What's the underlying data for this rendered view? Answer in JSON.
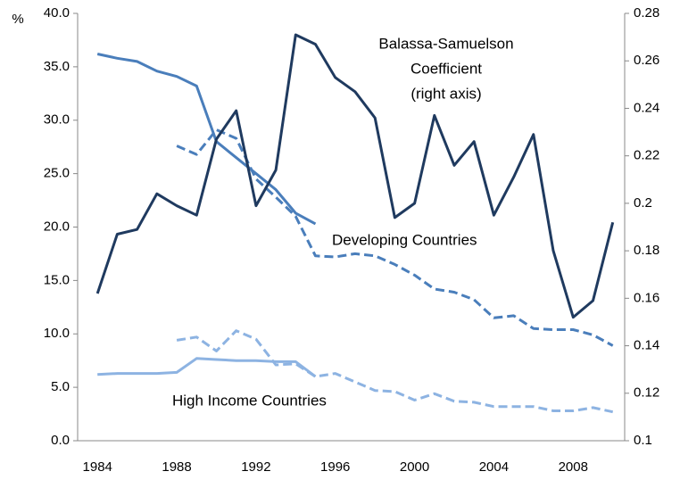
{
  "chart_data": {
    "type": "line",
    "y_unit_label": "%",
    "annotations": [
      [
        "Balassa-Samuelson",
        "Coefficient",
        "(right axis)"
      ],
      [
        "Developing Countries"
      ],
      [
        "High Income Countries"
      ]
    ],
    "xlim": [
      1983,
      2010.6
    ],
    "xticks": [
      1984,
      1988,
      1992,
      1996,
      2000,
      2004,
      2008
    ],
    "ylim": [
      0,
      40
    ],
    "yticks": [
      {
        "value": 0,
        "label": "0.0"
      },
      {
        "value": 5,
        "label": "5.0"
      },
      {
        "value": 10,
        "label": "10.0"
      },
      {
        "value": 15,
        "label": "15.0"
      },
      {
        "value": 20,
        "label": "20.0"
      },
      {
        "value": 25,
        "label": "25.0"
      },
      {
        "value": 30,
        "label": "30.0"
      },
      {
        "value": 35,
        "label": "35.0"
      },
      {
        "value": 40,
        "label": "40.0"
      }
    ],
    "y2lim": [
      0.1,
      0.28
    ],
    "y2ticks": [
      0.1,
      0.12,
      0.14,
      0.16,
      0.18,
      0.2,
      0.22,
      0.24,
      0.26,
      0.28
    ],
    "grid": false,
    "series": [
      {
        "color": "#4a7ebb",
        "style": "solid",
        "x": [
          1984,
          1985,
          1986,
          1987,
          1988,
          1989,
          1990,
          1991,
          1992,
          1993,
          1994,
          1995
        ],
        "values": [
          36.2,
          35.8,
          35.5,
          34.6,
          34.1,
          33.2,
          28.0,
          26.5,
          25.0,
          23.5,
          21.3,
          20.3
        ]
      },
      {
        "color": "#4a7ebb",
        "style": "dashed",
        "x": [
          1988,
          1989,
          1990,
          1991,
          1992,
          1993,
          1994,
          1995,
          1996,
          1997,
          1998,
          1999,
          2000,
          2001,
          2002,
          2003,
          2004,
          2005,
          2006,
          2007,
          2008,
          2009,
          2010
        ],
        "values": [
          27.6,
          26.8,
          29.1,
          28.3,
          24.5,
          22.8,
          21.0,
          17.3,
          17.2,
          17.5,
          17.3,
          16.5,
          15.5,
          14.2,
          13.9,
          13.2,
          11.5,
          11.7,
          10.5,
          10.4,
          10.4,
          9.9,
          8.9
        ]
      },
      {
        "color": "#8db3e2",
        "style": "solid",
        "x": [
          1984,
          1985,
          1986,
          1987,
          1988,
          1989,
          1990,
          1991,
          1992,
          1993,
          1994,
          1995
        ],
        "values": [
          6.2,
          6.3,
          6.3,
          6.3,
          6.4,
          7.7,
          7.6,
          7.5,
          7.5,
          7.4,
          7.4,
          6.0
        ]
      },
      {
        "color": "#8db3e2",
        "style": "dashed",
        "x": [
          1988,
          1989,
          1990,
          1991,
          1992,
          1993,
          1994,
          1995,
          1996,
          1997,
          1998,
          1999,
          2000,
          2001,
          2002,
          2003,
          2004,
          2005,
          2006,
          2007,
          2008,
          2009,
          2010
        ],
        "values": [
          9.4,
          9.7,
          8.4,
          10.3,
          9.5,
          7.1,
          7.2,
          6.0,
          6.3,
          5.5,
          4.7,
          4.6,
          3.8,
          4.4,
          3.7,
          3.6,
          3.2,
          3.2,
          3.2,
          2.8,
          2.8,
          3.1,
          2.7
        ]
      },
      {
        "color": "#1f3a5f",
        "style": "solid",
        "axis": "y2",
        "x": [
          1984,
          1985,
          1986,
          1987,
          1988,
          1989,
          1990,
          1991,
          1992,
          1993,
          1994,
          1995,
          1996,
          1997,
          1998,
          1999,
          2000,
          2001,
          2002,
          2003,
          2004,
          2005,
          2006,
          2007,
          2008,
          2009,
          2010
        ],
        "values": [
          0.162,
          0.187,
          0.189,
          0.204,
          0.199,
          0.195,
          0.227,
          0.239,
          0.199,
          0.214,
          0.271,
          0.267,
          0.253,
          0.247,
          0.236,
          0.194,
          0.2,
          0.237,
          0.216,
          0.226,
          0.195,
          0.211,
          0.229,
          0.18,
          0.152,
          0.159,
          0.192
        ]
      }
    ]
  }
}
